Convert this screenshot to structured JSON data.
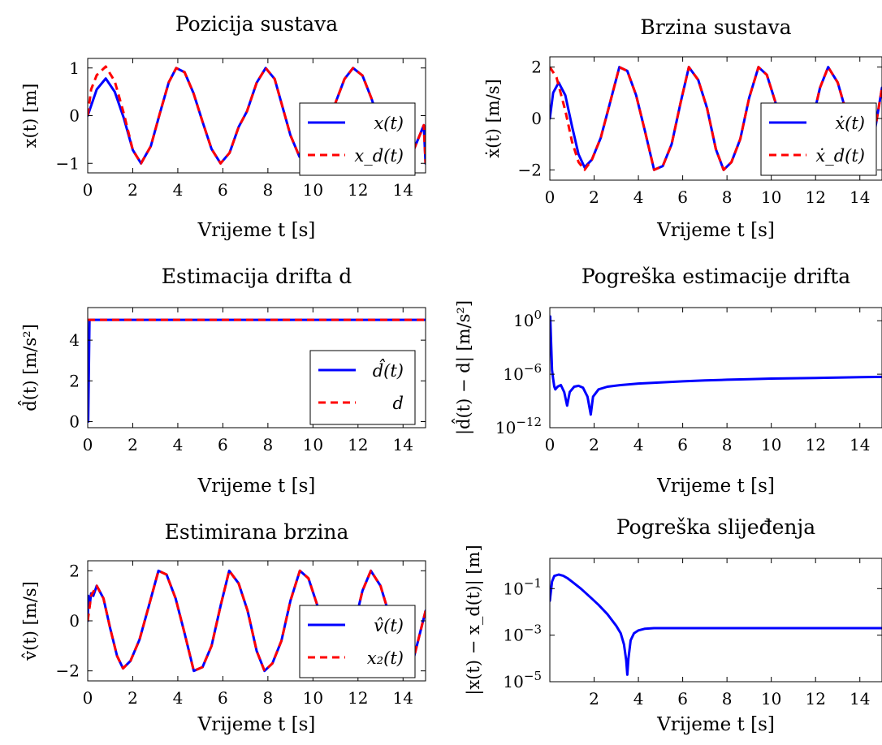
{
  "chart_data": [
    {
      "id": "position",
      "type": "line",
      "title": "Pozicija sustava",
      "xlabel": "Vrijeme t [s]",
      "ylabel": "x(t) [m]",
      "yscale": "linear",
      "xlim": [
        0,
        15
      ],
      "ylim": [
        -1.2,
        1.2
      ],
      "xticks": [
        0,
        2,
        4,
        6,
        8,
        10,
        12,
        14
      ],
      "yticks": [
        {
          "v": -1,
          "label": "−1"
        },
        {
          "v": 0,
          "label": "0"
        },
        {
          "v": 1,
          "label": "1"
        }
      ],
      "legend_position": "right",
      "series": [
        {
          "name": "x(t)",
          "color": "#0000ff",
          "style": "solid",
          "x": [
            0,
            0.4,
            0.8,
            1.2,
            1.6,
            2.0,
            2.37,
            2.8,
            3.2,
            3.6,
            3.93,
            4.3,
            4.7,
            5.1,
            5.5,
            5.9,
            6.3,
            6.7,
            7.07,
            7.5,
            7.9,
            8.3,
            8.64,
            9.0,
            9.4,
            9.8,
            10.21,
            10.6,
            11.0,
            11.4,
            11.78,
            12.2,
            12.6,
            13.0,
            13.35,
            13.7,
            14.1,
            14.5,
            14.92,
            15
          ],
          "y": [
            0,
            0.55,
            0.78,
            0.5,
            -0.05,
            -0.72,
            -1.0,
            -0.64,
            0.04,
            0.7,
            1.0,
            0.91,
            0.47,
            -0.13,
            -0.7,
            -1.0,
            -0.78,
            -0.24,
            0.09,
            0.69,
            1.0,
            0.77,
            0.2,
            -0.41,
            -0.86,
            -1.0,
            -0.76,
            -0.32,
            0.27,
            0.77,
            1.0,
            0.84,
            0.36,
            -0.22,
            -0.68,
            -0.95,
            -0.97,
            -0.69,
            -0.2,
            -1.0
          ]
        },
        {
          "name": "x_d(t)",
          "color": "#ff0000",
          "style": "dashed",
          "x": [
            0,
            0.15,
            0.4,
            0.8,
            1.2,
            1.6,
            2.0,
            2.37,
            2.8,
            3.2,
            3.6,
            3.93,
            4.3,
            4.7,
            5.1,
            5.5,
            5.9,
            6.3,
            6.7,
            7.07,
            7.5,
            7.9,
            8.3,
            8.64,
            9.0,
            9.4,
            9.8,
            10.21,
            10.6,
            11.0,
            11.4,
            11.78,
            12.2,
            12.6,
            13.0,
            13.35,
            13.7,
            14.1,
            14.5,
            14.92,
            15
          ],
          "y": [
            0,
            0.55,
            0.85,
            1.03,
            0.72,
            0.05,
            -0.72,
            -1.0,
            -0.64,
            0.04,
            0.7,
            1.0,
            0.91,
            0.47,
            -0.13,
            -0.7,
            -1.0,
            -0.78,
            -0.24,
            0.09,
            0.69,
            1.0,
            0.77,
            0.2,
            -0.41,
            -0.86,
            -1.0,
            -0.76,
            -0.32,
            0.27,
            0.77,
            1.0,
            0.84,
            0.36,
            -0.22,
            -0.68,
            -0.95,
            -0.97,
            -0.69,
            -0.2,
            -1.0
          ]
        }
      ]
    },
    {
      "id": "velocity",
      "type": "line",
      "title": "Brzina sustava",
      "xlabel": "Vrijeme t [s]",
      "ylabel": "ẋ(t) [m/s]",
      "yscale": "linear",
      "xlim": [
        0,
        15
      ],
      "ylim": [
        -2.4,
        2.4
      ],
      "xticks": [
        0,
        2,
        4,
        6,
        8,
        10,
        12,
        14
      ],
      "yticks": [
        {
          "v": -2,
          "label": "−2"
        },
        {
          "v": 0,
          "label": "0"
        },
        {
          "v": 2,
          "label": "2"
        }
      ],
      "legend_position": "right",
      "series": [
        {
          "name": "ẋ(t)",
          "color": "#0000ff",
          "style": "solid",
          "x": [
            0,
            0.15,
            0.4,
            0.7,
            1.0,
            1.3,
            1.57,
            1.9,
            2.3,
            2.7,
            3.14,
            3.5,
            3.9,
            4.3,
            4.71,
            5.1,
            5.5,
            5.9,
            6.28,
            6.7,
            7.1,
            7.5,
            7.85,
            8.2,
            8.6,
            9.0,
            9.42,
            9.8,
            10.2,
            10.6,
            11.0,
            11.4,
            11.8,
            12.2,
            12.57,
            13.0,
            13.4,
            13.8,
            14.14,
            14.5,
            15
          ],
          "y": [
            0,
            1.0,
            1.4,
            0.9,
            -0.3,
            -1.4,
            -1.9,
            -1.6,
            -0.75,
            0.55,
            2.0,
            1.85,
            0.9,
            -0.5,
            -2.0,
            -1.85,
            -1.0,
            0.6,
            2.0,
            1.5,
            0.4,
            -1.2,
            -2.0,
            -1.7,
            -0.8,
            0.8,
            2.0,
            1.7,
            0.6,
            -0.9,
            -1.85,
            -1.5,
            -0.3,
            1.2,
            2.0,
            1.4,
            0.2,
            -1.2,
            -2.0,
            -1.4,
            1.2
          ]
        },
        {
          "name": "ẋ_d(t)",
          "color": "#ff0000",
          "style": "dashed",
          "x": [
            0,
            0.3,
            0.7,
            1.0,
            1.3,
            1.57,
            1.9,
            2.3,
            2.7,
            3.14,
            3.5,
            3.9,
            4.3,
            4.71,
            5.1,
            5.5,
            5.9,
            6.28,
            6.7,
            7.1,
            7.5,
            7.85,
            8.2,
            8.6,
            9.0,
            9.42,
            9.8,
            10.2,
            10.6,
            11.0,
            11.4,
            11.8,
            12.2,
            12.57,
            13.0,
            13.4,
            13.8,
            14.14,
            14.5,
            15
          ],
          "y": [
            2.0,
            1.6,
            0.3,
            -0.9,
            -1.7,
            -2.0,
            -1.6,
            -0.75,
            0.55,
            2.0,
            1.85,
            0.9,
            -0.5,
            -2.0,
            -1.85,
            -1.0,
            0.6,
            2.0,
            1.5,
            0.4,
            -1.2,
            -2.0,
            -1.7,
            -0.8,
            0.8,
            2.0,
            1.7,
            0.6,
            -0.9,
            -1.85,
            -1.5,
            -0.3,
            1.2,
            2.0,
            1.4,
            0.2,
            -1.2,
            -2.0,
            -1.4,
            1.2
          ]
        }
      ]
    },
    {
      "id": "drift-estimate",
      "type": "line",
      "title": "Estimacija drifta d",
      "xlabel": "Vrijeme t [s]",
      "ylabel": "d̂(t) [m/s²]",
      "yscale": "linear",
      "xlim": [
        0,
        15
      ],
      "ylim": [
        -0.3,
        5.6
      ],
      "xticks": [
        0,
        2,
        4,
        6,
        8,
        10,
        12,
        14
      ],
      "yticks": [
        {
          "v": 0,
          "label": "0"
        },
        {
          "v": 2,
          "label": "2"
        },
        {
          "v": 4,
          "label": "4"
        }
      ],
      "legend_position": "lower right",
      "series": [
        {
          "name": "d̂(t)",
          "color": "#0000ff",
          "style": "solid",
          "x": [
            0,
            0.02,
            0.08,
            0.2,
            1,
            15
          ],
          "y": [
            0,
            0,
            5.0,
            5.0,
            5.0,
            5.0
          ]
        },
        {
          "name": "d",
          "color": "#ff0000",
          "style": "dashed",
          "x": [
            0,
            15
          ],
          "y": [
            5.0,
            5.0
          ]
        }
      ]
    },
    {
      "id": "drift-error",
      "type": "line",
      "title": "Pogreška estimacije drifta",
      "xlabel": "Vrijeme t [s]",
      "ylabel": "|d̂(t) − d| [m/s²]",
      "yscale": "log",
      "xlim": [
        0,
        15
      ],
      "ylim": [
        1e-12,
        30
      ],
      "xticks": [
        0,
        2,
        4,
        6,
        8,
        10,
        12,
        14
      ],
      "yticks": [
        {
          "v": 1e-12,
          "label": "10",
          "exp": "−12"
        },
        {
          "v": 1e-06,
          "label": "10",
          "exp": "−6"
        },
        {
          "v": 1,
          "label": "10",
          "exp": "0"
        }
      ],
      "series": [
        {
          "name": "",
          "color": "#0000ff",
          "style": "solid",
          "x": [
            0.02,
            0.05,
            0.1,
            0.15,
            0.2,
            0.25,
            0.35,
            0.5,
            0.65,
            0.78,
            0.9,
            1.1,
            1.3,
            1.5,
            1.7,
            1.85,
            1.95,
            2.2,
            2.6,
            3.2,
            4,
            5,
            6,
            7,
            8,
            9,
            10,
            11,
            12,
            13,
            14,
            15
          ],
          "y": [
            3,
            0.01,
            3e-06,
            3e-07,
            4e-08,
            2e-08,
            4e-08,
            6e-08,
            1e-08,
            3e-10,
            1e-08,
            4e-08,
            5e-08,
            3e-08,
            3e-09,
            3e-11,
            3e-09,
            2e-08,
            4e-08,
            6e-08,
            9e-08,
            1.2e-07,
            1.6e-07,
            2e-07,
            2.4e-07,
            2.8e-07,
            3.2e-07,
            3.5e-07,
            3.8e-07,
            4.2e-07,
            4.6e-07,
            5e-07
          ]
        }
      ]
    },
    {
      "id": "velocity-estimate",
      "type": "line",
      "title": "Estimirana brzina",
      "xlabel": "Vrijeme t [s]",
      "ylabel": "v̂(t) [m/s]",
      "yscale": "linear",
      "xlim": [
        0,
        15
      ],
      "ylim": [
        -2.4,
        2.4
      ],
      "xticks": [
        0,
        2,
        4,
        6,
        8,
        10,
        12,
        14
      ],
      "yticks": [
        {
          "v": -2,
          "label": "−2"
        },
        {
          "v": 0,
          "label": "0"
        },
        {
          "v": 2,
          "label": "2"
        }
      ],
      "legend_position": "lower right",
      "series": [
        {
          "name": "v̂(t)",
          "color": "#0000ff",
          "style": "solid",
          "x": [
            0,
            0.03,
            0.08,
            0.15,
            0.25,
            0.4,
            0.7,
            1.0,
            1.3,
            1.57,
            1.9,
            2.3,
            2.7,
            3.14,
            3.5,
            3.9,
            4.3,
            4.71,
            5.1,
            5.5,
            5.9,
            6.28,
            6.7,
            7.1,
            7.5,
            7.85,
            8.2,
            8.6,
            9.0,
            9.42,
            9.8,
            10.2,
            10.6,
            11.0,
            11.4,
            11.8,
            12.2,
            12.57,
            13.0,
            13.4,
            13.8,
            14.14,
            14.5,
            15
          ],
          "y": [
            0,
            1.0,
            0.55,
            1.1,
            1.0,
            1.4,
            0.9,
            -0.3,
            -1.4,
            -1.9,
            -1.6,
            -0.75,
            0.55,
            2.0,
            1.85,
            0.9,
            -0.5,
            -2.0,
            -1.85,
            -1.0,
            0.6,
            2.0,
            1.5,
            0.4,
            -1.2,
            -2.0,
            -1.7,
            -0.8,
            0.8,
            2.0,
            1.7,
            0.6,
            -0.9,
            -1.85,
            -1.5,
            -0.3,
            1.2,
            2.0,
            1.4,
            0.2,
            -1.2,
            -2.0,
            -1.4,
            0.4
          ]
        },
        {
          "name": "x₂(t)",
          "color": "#ff0000",
          "style": "dashed",
          "x": [
            0,
            0.15,
            0.4,
            0.7,
            1.0,
            1.3,
            1.57,
            1.9,
            2.3,
            2.7,
            3.14,
            3.5,
            3.9,
            4.3,
            4.71,
            5.1,
            5.5,
            5.9,
            6.28,
            6.7,
            7.1,
            7.5,
            7.85,
            8.2,
            8.6,
            9.0,
            9.42,
            9.8,
            10.2,
            10.6,
            11.0,
            11.4,
            11.8,
            12.2,
            12.57,
            13.0,
            13.4,
            13.8,
            14.14,
            14.5,
            15
          ],
          "y": [
            0,
            1.0,
            1.4,
            0.9,
            -0.3,
            -1.4,
            -1.9,
            -1.6,
            -0.75,
            0.55,
            2.0,
            1.85,
            0.9,
            -0.5,
            -2.0,
            -1.85,
            -1.0,
            0.6,
            2.0,
            1.5,
            0.4,
            -1.2,
            -2.0,
            -1.7,
            -0.8,
            0.8,
            2.0,
            1.7,
            0.6,
            -0.9,
            -1.85,
            -1.5,
            -0.3,
            1.2,
            2.0,
            1.4,
            0.2,
            -1.2,
            -2.0,
            -1.4,
            0.4
          ]
        }
      ]
    },
    {
      "id": "tracking-error",
      "type": "line",
      "title": "Pogreška slijeđenja",
      "xlabel": "Vrijeme t [s]",
      "ylabel": "|x(t) − x_d(t)| [m]",
      "yscale": "log",
      "xlim": [
        0,
        15
      ],
      "ylim": [
        1e-05,
        2
      ],
      "xticks": [
        2,
        4,
        6,
        8,
        10,
        12,
        14
      ],
      "yticks": [
        {
          "v": 1e-05,
          "label": "10",
          "exp": "−5"
        },
        {
          "v": 0.001,
          "label": "10",
          "exp": "−3"
        },
        {
          "v": 0.1,
          "label": "10",
          "exp": "−1"
        }
      ],
      "series": [
        {
          "name": "",
          "color": "#0000ff",
          "style": "solid",
          "x": [
            0,
            0.1,
            0.2,
            0.4,
            0.6,
            0.8,
            1.0,
            1.4,
            1.8,
            2.2,
            2.6,
            3.0,
            3.2,
            3.35,
            3.45,
            3.5,
            3.55,
            3.65,
            3.8,
            4.0,
            4.3,
            4.7,
            5.5,
            7,
            9,
            11,
            13,
            15
          ],
          "y": [
            0.03,
            0.2,
            0.35,
            0.4,
            0.36,
            0.28,
            0.2,
            0.1,
            0.045,
            0.02,
            0.008,
            0.0025,
            0.0012,
            0.0004,
            8e-05,
            2e-05,
            0.0001,
            0.0006,
            0.0012,
            0.0016,
            0.0019,
            0.002,
            0.002,
            0.002,
            0.002,
            0.002,
            0.002,
            0.002
          ]
        }
      ]
    }
  ]
}
